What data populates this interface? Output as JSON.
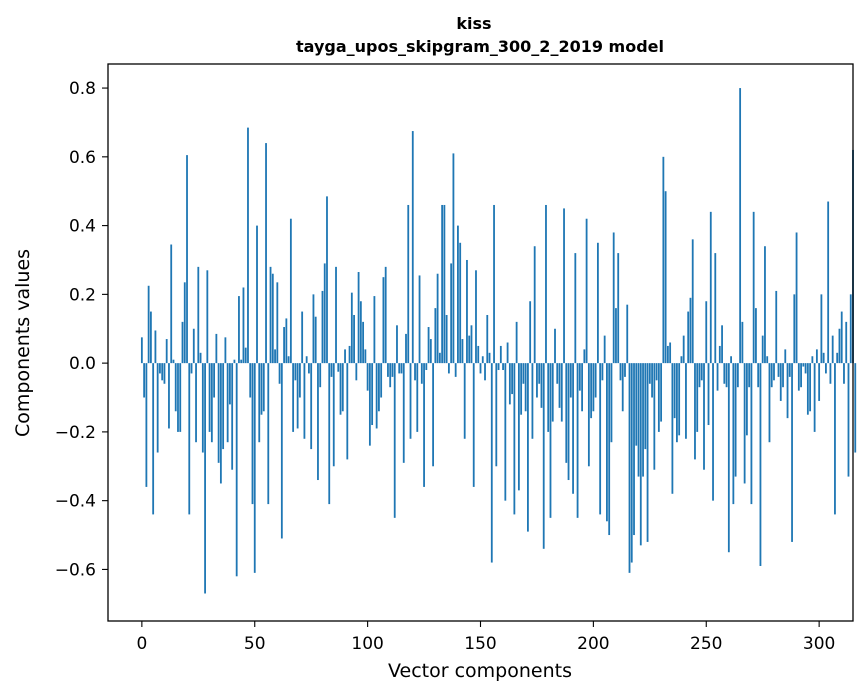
{
  "chart_data": {
    "type": "bar",
    "title": "kiss",
    "subtitle": "tayga_upos_skipgram_300_2_2019 model",
    "xlabel": "Vector components",
    "ylabel": "Components values",
    "xlim": [
      -15,
      315
    ],
    "ylim": [
      -0.75,
      0.87
    ],
    "xticks": [
      0,
      50,
      100,
      150,
      200,
      250,
      300
    ],
    "yticks": [
      -0.6,
      -0.4,
      -0.2,
      0.0,
      0.2,
      0.4,
      0.6,
      0.8
    ],
    "ytick_labels": [
      "−0.6",
      "−0.4",
      "−0.2",
      "0.0",
      "0.2",
      "0.4",
      "0.6",
      "0.8"
    ],
    "bar_color": "#1f77b4",
    "grid": false,
    "values": [
      0.075,
      -0.1,
      -0.36,
      0.225,
      0.15,
      -0.44,
      0.095,
      -0.26,
      -0.03,
      -0.05,
      -0.06,
      0.07,
      -0.19,
      0.345,
      0.01,
      -0.14,
      -0.2,
      -0.2,
      0.12,
      0.235,
      0.605,
      -0.44,
      -0.03,
      0.1,
      -0.23,
      0.28,
      0.03,
      -0.26,
      -0.67,
      0.27,
      -0.2,
      -0.23,
      -0.1,
      0.085,
      -0.29,
      -0.35,
      -0.25,
      0.075,
      -0.23,
      -0.12,
      -0.31,
      0.01,
      -0.62,
      0.195,
      0.01,
      0.22,
      0.045,
      0.685,
      -0.1,
      -0.41,
      -0.61,
      0.4,
      -0.23,
      -0.15,
      -0.14,
      0.64,
      -0.41,
      0.28,
      0.26,
      0.04,
      0.235,
      -0.06,
      -0.51,
      0.105,
      0.13,
      0.02,
      0.42,
      -0.2,
      -0.05,
      -0.19,
      -0.1,
      0.15,
      -0.22,
      0.02,
      -0.03,
      -0.25,
      0.2,
      0.135,
      -0.34,
      -0.07,
      0.21,
      0.29,
      0.485,
      -0.41,
      -0.04,
      -0.3,
      0.28,
      -0.025,
      -0.15,
      -0.14,
      0.04,
      -0.28,
      0.05,
      0.205,
      0.14,
      -0.05,
      0.265,
      0.18,
      0.12,
      0.04,
      -0.08,
      -0.24,
      -0.18,
      0.195,
      -0.19,
      -0.14,
      -0.1,
      0.25,
      0.28,
      -0.04,
      -0.07,
      -0.04,
      -0.45,
      0.11,
      -0.03,
      -0.03,
      -0.29,
      0.085,
      0.46,
      -0.22,
      0.675,
      -0.05,
      -0.2,
      0.255,
      -0.06,
      -0.36,
      -0.02,
      0.105,
      0.07,
      -0.3,
      0.16,
      0.26,
      0.03,
      0.46,
      0.46,
      0.14,
      -0.03,
      0.29,
      0.61,
      -0.04,
      0.4,
      0.35,
      0.07,
      -0.22,
      0.3,
      0.08,
      0.11,
      -0.36,
      0.27,
      0.05,
      -0.03,
      0.02,
      -0.05,
      0.14,
      0.03,
      -0.58,
      0.46,
      -0.3,
      -0.02,
      0.05,
      -0.02,
      -0.4,
      0.06,
      -0.12,
      -0.09,
      -0.44,
      0.12,
      -0.37,
      -0.15,
      -0.06,
      -0.14,
      -0.49,
      0.18,
      -0.22,
      0.34,
      -0.1,
      -0.06,
      -0.13,
      -0.54,
      0.46,
      -0.2,
      -0.45,
      -0.17,
      0.1,
      -0.06,
      -0.13,
      -0.17,
      0.45,
      -0.29,
      -0.34,
      -0.1,
      -0.38,
      0.32,
      -0.45,
      -0.08,
      -0.14,
      0.04,
      0.42,
      -0.3,
      -0.16,
      -0.14,
      -0.1,
      0.35,
      -0.44,
      -0.05,
      0.08,
      -0.46,
      -0.5,
      -0.23,
      0.38,
      0.16,
      0.32,
      -0.05,
      -0.14,
      -0.04,
      0.17,
      -0.61,
      -0.58,
      -0.5,
      -0.24,
      -0.33,
      -0.53,
      -0.33,
      -0.25,
      -0.52,
      -0.06,
      -0.1,
      -0.31,
      -0.05,
      -0.2,
      -0.17,
      0.6,
      0.5,
      0.05,
      0.06,
      -0.38,
      -0.16,
      -0.23,
      -0.21,
      0.02,
      0.08,
      -0.22,
      0.15,
      0.19,
      0.36,
      -0.28,
      -0.2,
      -0.07,
      -0.05,
      -0.31,
      0.18,
      -0.18,
      0.44,
      -0.4,
      0.32,
      -0.08,
      0.05,
      0.11,
      -0.06,
      -0.07,
      -0.55,
      0.02,
      -0.41,
      -0.33,
      -0.07,
      0.8,
      0.12,
      -0.35,
      -0.21,
      -0.07,
      -0.41,
      0.44,
      0.16,
      -0.07,
      -0.59,
      0.08,
      0.34,
      0.02,
      -0.23,
      -0.07,
      -0.05,
      0.21,
      -0.04,
      -0.11,
      -0.07,
      0.04,
      -0.16,
      -0.04,
      -0.52,
      0.2,
      0.38,
      -0.08,
      -0.07,
      -0.01,
      -0.03,
      -0.15,
      -0.14,
      0.02,
      -0.2,
      0.04,
      -0.11,
      0.2,
      0.03,
      -0.03,
      0.47,
      -0.06,
      0.08,
      -0.44,
      0.03,
      0.1,
      0.15,
      -0.06,
      0.12,
      -0.33,
      0.2,
      0.62,
      -0.26
    ]
  }
}
